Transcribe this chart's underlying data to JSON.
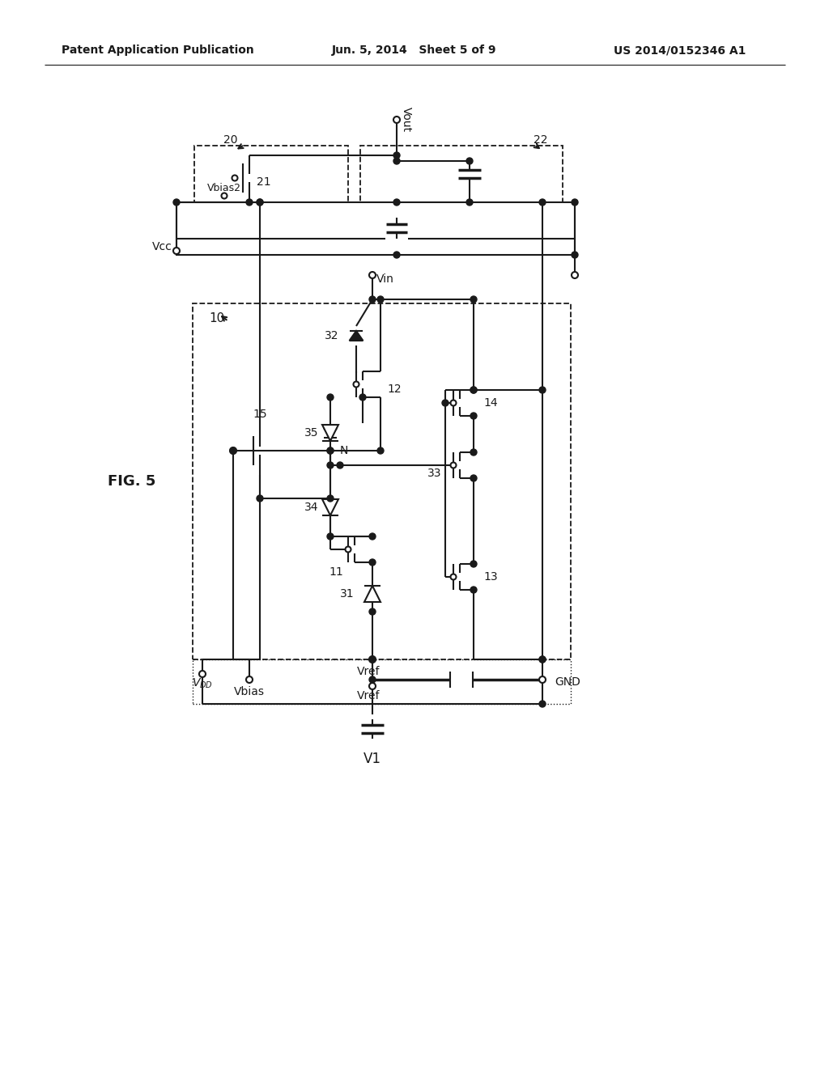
{
  "bg": "#ffffff",
  "lc": "#1a1a1a",
  "lw": 1.5,
  "header_left": "Patent Application Publication",
  "header_mid": "Jun. 5, 2014   Sheet 5 of 9",
  "header_right": "US 2014/0152346 A1",
  "fig_label": "FIG. 5"
}
